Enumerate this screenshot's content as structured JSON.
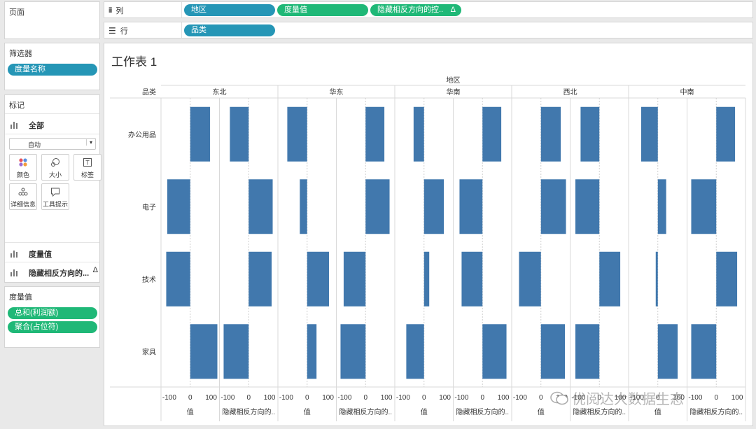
{
  "left_panel": {
    "pages": {
      "title": "页面"
    },
    "filters": {
      "title": "筛选器",
      "pills": [
        "度量名称"
      ]
    },
    "marks": {
      "title": "标记",
      "all_label": "全部",
      "mark_type": "自动",
      "cards": [
        {
          "label": "颜色",
          "icon": "color-dots-icon"
        },
        {
          "label": "大小",
          "icon": "size-icon"
        },
        {
          "label": "标签",
          "icon": "label-icon"
        },
        {
          "label": "详细信息",
          "icon": "detail-icon"
        },
        {
          "label": "工具提示",
          "icon": "tooltip-icon"
        }
      ],
      "layers": [
        "度量值",
        "隐藏相反方向的..."
      ],
      "layer_warning": "Δ"
    },
    "measure_values": {
      "title": "度量值",
      "pills": [
        "总和(利润额)",
        "聚合(占位符)"
      ]
    }
  },
  "shelves": {
    "columns": {
      "label": "列",
      "pills": [
        {
          "text": "地区",
          "color": "blue"
        },
        {
          "text": "度量值",
          "color": "green"
        },
        {
          "text": "隐藏相反方向的控..",
          "color": "green",
          "warning": "Δ"
        }
      ]
    },
    "rows": {
      "label": "行",
      "pills": [
        {
          "text": "品类",
          "color": "blue"
        }
      ]
    }
  },
  "sheet": {
    "title": "工作表 1"
  },
  "chart_data": {
    "type": "bar",
    "orientation": "horizontal",
    "column_header": "地区",
    "row_header": "品类",
    "regions": [
      "东北",
      "华东",
      "华南",
      "西北",
      "中南"
    ],
    "categories": [
      "办公用品",
      "电子",
      "技术",
      "家具"
    ],
    "axis_ticks": [
      -100,
      0,
      100
    ],
    "axis_titles": [
      "值",
      "隐藏相反方向的.."
    ],
    "panes": [
      {
        "region": "东北",
        "measure": "值",
        "values": [
          95,
          -110,
          -115,
          130
        ]
      },
      {
        "region": "东北",
        "measure": "隐藏相反方向的..",
        "values": [
          -90,
          115,
          110,
          -120
        ]
      },
      {
        "region": "华东",
        "measure": "值",
        "values": [
          -95,
          -35,
          105,
          45
        ]
      },
      {
        "region": "华东",
        "measure": "隐藏相反方向的..",
        "values": [
          90,
          115,
          -105,
          -120
        ]
      },
      {
        "region": "华南",
        "measure": "值",
        "values": [
          -50,
          95,
          25,
          -85
        ]
      },
      {
        "region": "华南",
        "measure": "隐藏相反方向的..",
        "values": [
          90,
          -110,
          -100,
          115
        ]
      },
      {
        "region": "西北",
        "measure": "值",
        "values": [
          95,
          120,
          -105,
          115
        ]
      },
      {
        "region": "西北",
        "measure": "隐藏相反方向的..",
        "values": [
          -90,
          -115,
          100,
          -115
        ]
      },
      {
        "region": "中南",
        "measure": "值",
        "values": [
          -80,
          40,
          -10,
          95
        ]
      },
      {
        "region": "中南",
        "measure": "隐藏相反方向的..",
        "values": [
          90,
          -120,
          100,
          -120
        ]
      }
    ],
    "bar_color": "#4178ad"
  },
  "watermark": "优阅达大数据生态"
}
